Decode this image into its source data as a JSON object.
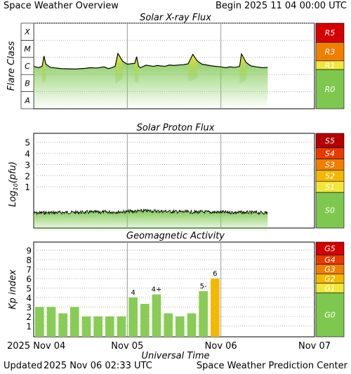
{
  "header": {
    "title": "Space Weather Overview",
    "begin_label": "Begin",
    "begin_value": "2025 11 04 00:00 UTC"
  },
  "footer": {
    "updated_label": "Updated",
    "updated_value": "2025 Nov 06 02:33 UTC",
    "source": "Space Weather Prediction Center"
  },
  "colors": {
    "green": "#7ec850",
    "yellow": "#f2e63a",
    "gold": "#f4b800",
    "orange": "#f07f00",
    "red_orange": "#e83a00",
    "red": "#d40000",
    "dark_red": "#b30000",
    "kp_green": "#88cc55"
  },
  "chart_data": [
    {
      "id": "xray",
      "type": "area",
      "title": "Solar X-ray Flux",
      "ylabel": "Flare Class",
      "y_scale": "log",
      "ylim": [
        1e-08,
        0.001
      ],
      "y_class_labels": [
        {
          "label": "A",
          "value": 1e-08
        },
        {
          "label": "B",
          "value": 1e-07
        },
        {
          "label": "C",
          "value": 1e-06
        },
        {
          "label": "M",
          "value": 1e-05
        },
        {
          "label": "X",
          "value": 0.0001
        }
      ],
      "x_days": [
        0,
        3
      ],
      "points": [
        [
          0,
          3e-06
        ],
        [
          0.05,
          2.5e-06
        ],
        [
          0.09,
          3e-06
        ],
        [
          0.11,
          1.2e-05
        ],
        [
          0.13,
          4e-06
        ],
        [
          0.18,
          2.6e-06
        ],
        [
          0.3,
          2.2e-06
        ],
        [
          0.45,
          2.1e-06
        ],
        [
          0.55,
          2.3e-06
        ],
        [
          0.6,
          2.5e-06
        ],
        [
          0.68,
          2.4e-06
        ],
        [
          0.75,
          2.8e-06
        ],
        [
          0.8,
          2.2e-06
        ],
        [
          0.85,
          2.7e-06
        ],
        [
          0.87,
          3e-06
        ],
        [
          0.9,
          1.7e-05
        ],
        [
          0.95,
          6e-06
        ],
        [
          1.0,
          4e-06
        ],
        [
          1.08,
          4.5e-06
        ],
        [
          1.1,
          1.1e-05
        ],
        [
          1.12,
          3e-06
        ],
        [
          1.14,
          2.5e-06
        ],
        [
          1.2,
          3.5e-06
        ],
        [
          1.28,
          3e-06
        ],
        [
          1.32,
          3.4e-06
        ],
        [
          1.4,
          3e-06
        ],
        [
          1.45,
          3.6e-06
        ],
        [
          1.5,
          3.4e-06
        ],
        [
          1.6,
          3.8e-06
        ],
        [
          1.65,
          4.2e-06
        ],
        [
          1.7,
          1.5e-05
        ],
        [
          1.75,
          6e-06
        ],
        [
          1.8,
          4e-06
        ],
        [
          1.9,
          3.2e-06
        ],
        [
          2.0,
          2.8e-06
        ],
        [
          2.05,
          2.5e-06
        ],
        [
          2.1,
          2.8e-06
        ],
        [
          2.15,
          2.6e-06
        ],
        [
          2.2,
          3e-06
        ],
        [
          2.22,
          1.6e-05
        ],
        [
          2.27,
          5e-06
        ],
        [
          2.32,
          3.2e-06
        ],
        [
          2.38,
          2.8e-06
        ],
        [
          2.45,
          2.5e-06
        ],
        [
          2.5,
          2.6e-06
        ]
      ],
      "scale": {
        "labels": [
          "R5",
          "R3",
          "R1",
          "R0"
        ],
        "colors": [
          "#d40000",
          "#f07f00",
          "#f2e63a",
          "#7ec850"
        ]
      }
    },
    {
      "id": "proton",
      "type": "area",
      "title": "Solar Proton Flux",
      "ylabel_main": "Log",
      "ylabel_sub": "10",
      "ylabel_tail": "(pfu)",
      "y_ticks": [
        "1",
        "2",
        "3",
        "4",
        "5"
      ],
      "ylim": [
        -2.7,
        5.8
      ],
      "x_days": [
        0,
        3
      ],
      "points": [
        [
          0,
          -1.35
        ],
        [
          0.3,
          -1.3
        ],
        [
          0.6,
          -1.28
        ],
        [
          0.9,
          -1.25
        ],
        [
          1.0,
          -1.22
        ],
        [
          1.2,
          -1.15
        ],
        [
          1.4,
          -1.2
        ],
        [
          1.6,
          -1.25
        ],
        [
          1.9,
          -1.27
        ],
        [
          2.2,
          -1.3
        ],
        [
          2.5,
          -1.32
        ]
      ],
      "scale": {
        "labels": [
          "S5",
          "S4",
          "S3",
          "S2",
          "S1",
          "S0"
        ],
        "colors": [
          "#b30000",
          "#e83a00",
          "#f07f00",
          "#f4b800",
          "#f2e63a",
          "#7ec850"
        ]
      }
    },
    {
      "id": "kp",
      "type": "bar",
      "title": "Geomagnetic Activity",
      "ylabel": "Kp index",
      "y_ticks": [
        "1",
        "2",
        "3",
        "4",
        "5",
        "6",
        "7",
        "8",
        "9"
      ],
      "ylim": [
        0,
        10
      ],
      "values": [
        3.0,
        3.0,
        2.33,
        3.0,
        2.0,
        2.0,
        2.0,
        2.0,
        4.0,
        3.33,
        4.33,
        2.33,
        2.0,
        2.33,
        4.67,
        6.0
      ],
      "bar_labels": [
        "",
        "",
        "",
        "",
        "",
        "",
        "",
        "",
        "4",
        "",
        "4+",
        "",
        "",
        "",
        "5-",
        "6"
      ],
      "scale": {
        "labels": [
          "G5",
          "G4",
          "G3",
          "G2",
          "G1",
          "G0"
        ],
        "colors": [
          "#d40000",
          "#e83a00",
          "#f07f00",
          "#f4b800",
          "#f2e63a",
          "#7ec850"
        ]
      }
    }
  ],
  "x_axis": {
    "label": "Universal Time",
    "ticks": [
      "2025 Nov 04",
      "Nov 05",
      "Nov 06",
      "Nov 07"
    ]
  }
}
